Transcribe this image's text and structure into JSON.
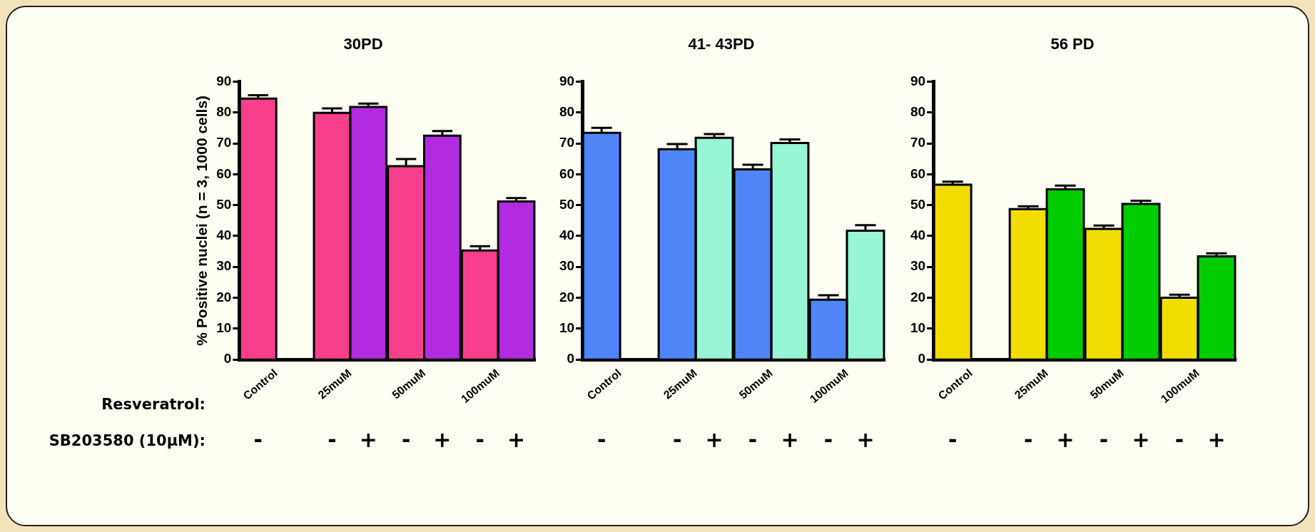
{
  "chart_data": [
    {
      "type": "bar",
      "title": "30PD",
      "ylabel": "% Positive nuclei (n = 3, 1000 cells)",
      "categories": [
        "Control",
        "25muM",
        "50muM",
        "100muM"
      ],
      "ylim": [
        0,
        90
      ],
      "yticks": [
        0,
        10,
        20,
        30,
        40,
        50,
        60,
        70,
        80,
        90
      ],
      "grid": false,
      "annotations": [
        "Resveratrol:",
        "SB203580 (10μM):",
        "-",
        "-",
        "+",
        "-",
        "+",
        "-",
        "+"
      ],
      "series": [
        {
          "color": "#f73f8c",
          "values": [
            84.5,
            79.9,
            62.6,
            35.3
          ],
          "errors": [
            1.1,
            1.4,
            2.3,
            1.4
          ]
        },
        {
          "color": "#b22be0",
          "values": [
            null,
            81.8,
            72.5,
            51.2
          ],
          "errors": [
            null,
            1.1,
            1.5,
            1.1
          ]
        }
      ]
    },
    {
      "type": "bar",
      "title": "41- 43PD",
      "categories": [
        "Control",
        "25muM",
        "50muM",
        "100muM"
      ],
      "ylim": [
        0,
        90
      ],
      "yticks": [
        0,
        10,
        20,
        30,
        40,
        50,
        60,
        70,
        80,
        90
      ],
      "grid": false,
      "annotations": [
        "-",
        "-",
        "+",
        "-",
        "+",
        "-",
        "+"
      ],
      "series": [
        {
          "color": "#4f86f7",
          "values": [
            73.4,
            68.1,
            61.6,
            19.4
          ],
          "errors": [
            1.6,
            1.7,
            1.5,
            1.4
          ]
        },
        {
          "color": "#98f5d5",
          "values": [
            null,
            71.8,
            70.1,
            41.7
          ],
          "errors": [
            null,
            1.2,
            1.2,
            1.8
          ]
        }
      ]
    },
    {
      "type": "bar",
      "title": "56 PD",
      "categories": [
        "Control",
        "25muM",
        "50muM",
        "100muM"
      ],
      "ylim": [
        0,
        90
      ],
      "yticks": [
        0,
        10,
        20,
        30,
        40,
        50,
        60,
        70,
        80,
        90
      ],
      "grid": false,
      "annotations": [
        "-",
        "-",
        "+",
        "-",
        "+",
        "-",
        "+"
      ],
      "series": [
        {
          "color": "#f2dd00",
          "values": [
            56.6,
            48.7,
            42.3,
            20.0
          ],
          "errors": [
            1.0,
            0.9,
            1.1,
            1.0
          ]
        },
        {
          "color": "#00cc00",
          "values": [
            null,
            55.1,
            50.4,
            33.4
          ],
          "errors": [
            null,
            1.2,
            1.0,
            1.0
          ]
        }
      ]
    }
  ]
}
